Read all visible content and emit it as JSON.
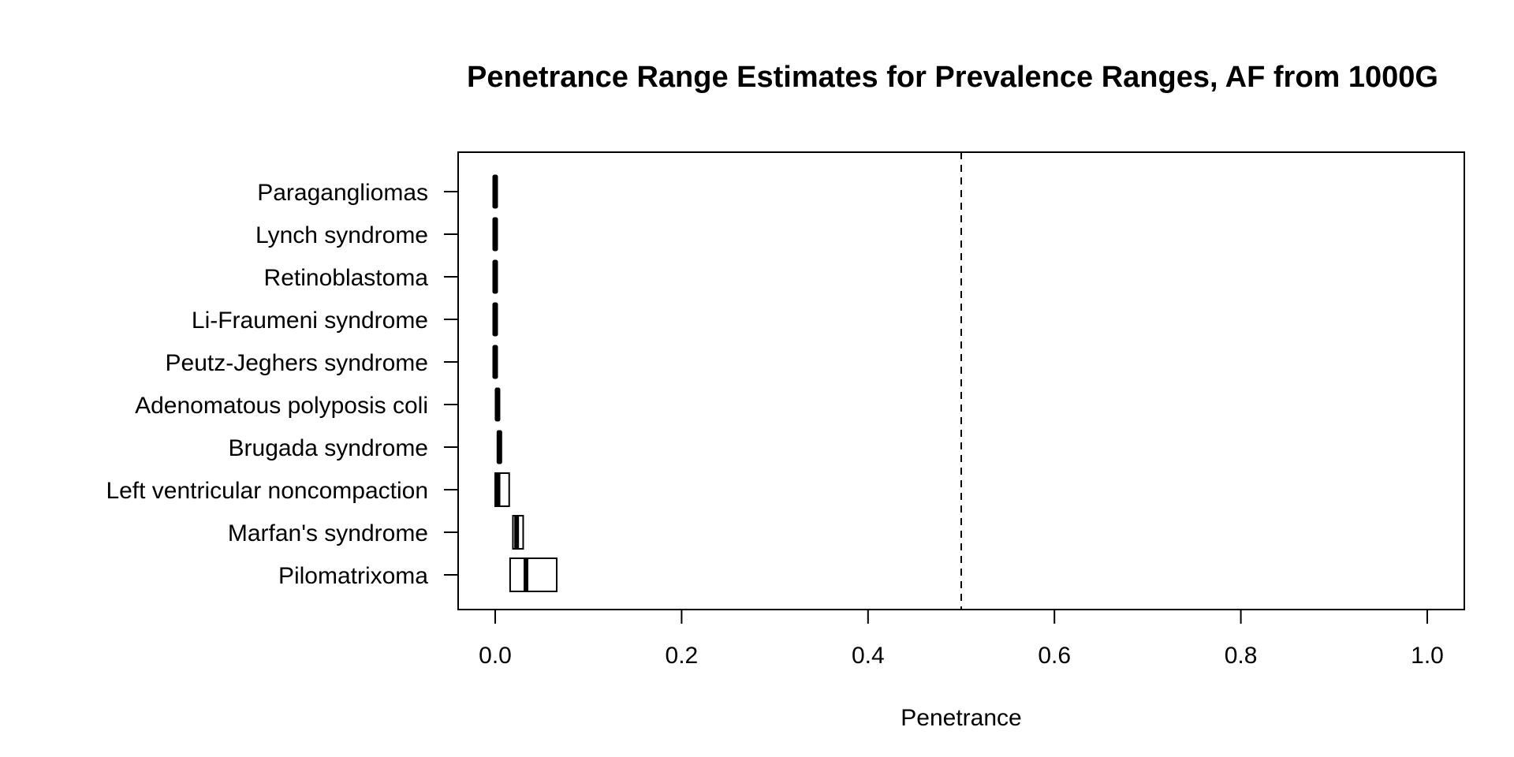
{
  "chart_data": {
    "type": "box",
    "orientation": "horizontal",
    "title": "Penetrance Range Estimates for Prevalence Ranges, AF from 1000G",
    "xlabel": "Penetrance",
    "ylabel": "",
    "xlim": [
      0,
      1
    ],
    "xticks": [
      "0.0",
      "0.2",
      "0.4",
      "0.6",
      "0.8",
      "1.0"
    ],
    "xtick_values": [
      0,
      0.2,
      0.4,
      0.6,
      0.8,
      1.0
    ],
    "reference_line": {
      "x": 0.5,
      "style": "dashed"
    },
    "grid": false,
    "categories": [
      "Paragangliomas",
      "Lynch syndrome",
      "Retinoblastoma",
      "Li-Fraumeni syndrome",
      "Peutz-Jeghers syndrome",
      "Adenomatous polyposis coli",
      "Brugada syndrome",
      "Left ventricular noncompaction",
      "Marfan's syndrome",
      "Pilomatrixoma"
    ],
    "boxes": [
      {
        "low": 0.0,
        "median": 0.0,
        "high": 0.0
      },
      {
        "low": 0.0,
        "median": 0.0,
        "high": 0.0
      },
      {
        "low": 0.0,
        "median": 0.0,
        "high": 0.0
      },
      {
        "low": 0.0,
        "median": 0.0,
        "high": 0.0
      },
      {
        "low": 0.0,
        "median": 0.0,
        "high": 0.0
      },
      {
        "low": 0.002,
        "median": 0.002,
        "high": 0.003
      },
      {
        "low": 0.004,
        "median": 0.004,
        "high": 0.005
      },
      {
        "low": 0.0,
        "median": 0.003,
        "high": 0.015
      },
      {
        "low": 0.019,
        "median": 0.023,
        "high": 0.03
      },
      {
        "low": 0.016,
        "median": 0.033,
        "high": 0.066
      }
    ]
  }
}
